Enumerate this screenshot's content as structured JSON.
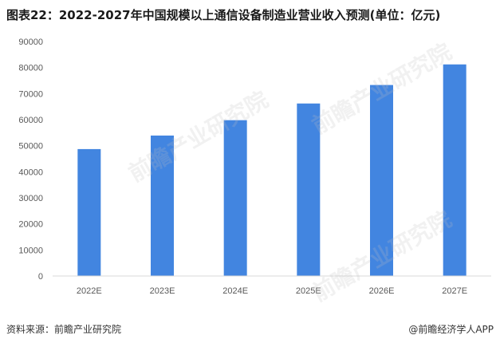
{
  "title": "图表22：2022-2027年中国规模以上通信设备制造业营业收入预测(单位：亿元)",
  "source": "资料来源：前瞻产业研究院",
  "brand": "@前瞻经济学人APP",
  "watermark": "前瞻产业研究院",
  "colors": {
    "bar": "#4285E0",
    "axis": "#d9d9d9",
    "text": "#595959"
  },
  "chart_data": {
    "type": "bar",
    "categories": [
      "2022E",
      "2023E",
      "2024E",
      "2025E",
      "2026E",
      "2027E"
    ],
    "values": [
      48700,
      53900,
      59800,
      66200,
      73300,
      81200
    ],
    "yticks": [
      0,
      10000,
      20000,
      30000,
      40000,
      50000,
      60000,
      70000,
      80000,
      90000
    ],
    "ylim": [
      0,
      90000
    ],
    "grid": false,
    "legend": "none"
  }
}
